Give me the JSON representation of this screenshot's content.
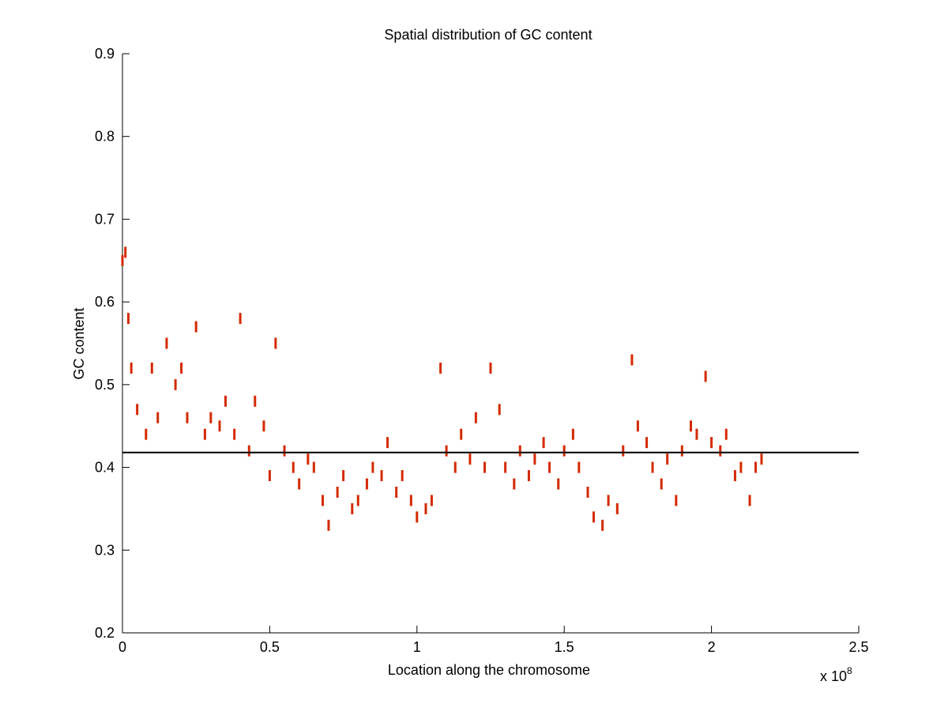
{
  "chart_data": {
    "type": "scatter",
    "title": "Spatial distribution of GC content",
    "xlabel": "Location along the chromosome",
    "ylabel": "GC content",
    "x_exponent_label": "x 10",
    "x_exponent_power": "8",
    "xlim": [
      0,
      2.5
    ],
    "ylim": [
      0.2,
      0.9
    ],
    "x_ticks": [
      0,
      0.5,
      1,
      1.5,
      2,
      2.5
    ],
    "x_tick_labels": [
      "0",
      "0.5",
      "1",
      "1.5",
      "2",
      "2.5"
    ],
    "y_ticks": [
      0.2,
      0.3,
      0.4,
      0.5,
      0.6,
      0.7,
      0.8,
      0.9
    ],
    "y_tick_labels": [
      "0.2",
      "0.3",
      "0.4",
      "0.5",
      "0.6",
      "0.7",
      "0.8",
      "0.9"
    ],
    "grid": false,
    "point_color": "#d42a00",
    "reference_line": {
      "y": 0.418,
      "color": "#000000"
    },
    "series": [
      {
        "x": [
          0.0,
          0.01,
          0.02,
          0.03,
          0.05,
          0.08,
          0.1,
          0.12,
          0.15,
          0.18,
          0.2,
          0.22,
          0.25,
          0.28,
          0.3,
          0.33,
          0.35,
          0.38,
          0.4,
          0.43,
          0.45,
          0.48,
          0.5,
          0.52,
          0.55,
          0.58,
          0.6,
          0.63,
          0.65,
          0.68,
          0.7,
          0.73,
          0.75,
          0.78,
          0.8,
          0.83,
          0.85,
          0.88,
          0.9,
          0.93,
          0.95,
          0.98,
          1.0,
          1.03,
          1.05,
          1.08,
          1.1,
          1.13,
          1.15,
          1.18,
          1.2,
          1.23,
          1.25,
          1.28,
          1.3,
          1.33,
          1.35,
          1.38,
          1.4,
          1.43,
          1.45,
          1.48,
          1.5,
          1.53,
          1.55,
          1.58,
          1.6,
          1.63,
          1.65,
          1.68,
          1.7,
          1.73,
          1.75,
          1.78,
          1.8,
          1.83,
          1.85,
          1.88,
          1.9,
          1.93,
          1.95,
          1.98,
          2.0,
          2.03,
          2.05,
          2.08,
          2.1,
          2.13,
          2.15,
          2.17
        ],
        "y": [
          0.65,
          0.66,
          0.58,
          0.52,
          0.47,
          0.44,
          0.52,
          0.46,
          0.55,
          0.5,
          0.52,
          0.46,
          0.57,
          0.44,
          0.46,
          0.45,
          0.48,
          0.44,
          0.58,
          0.42,
          0.48,
          0.45,
          0.39,
          0.55,
          0.42,
          0.4,
          0.38,
          0.41,
          0.4,
          0.36,
          0.33,
          0.37,
          0.39,
          0.35,
          0.36,
          0.38,
          0.4,
          0.39,
          0.43,
          0.37,
          0.39,
          0.36,
          0.34,
          0.35,
          0.36,
          0.52,
          0.42,
          0.4,
          0.44,
          0.41,
          0.46,
          0.4,
          0.52,
          0.47,
          0.4,
          0.38,
          0.42,
          0.39,
          0.41,
          0.43,
          0.4,
          0.38,
          0.42,
          0.44,
          0.4,
          0.37,
          0.34,
          0.33,
          0.36,
          0.35,
          0.42,
          0.53,
          0.45,
          0.43,
          0.4,
          0.38,
          0.41,
          0.36,
          0.42,
          0.45,
          0.44,
          0.51,
          0.43,
          0.42,
          0.44,
          0.39,
          0.4,
          0.36,
          0.4,
          0.41
        ]
      }
    ]
  }
}
